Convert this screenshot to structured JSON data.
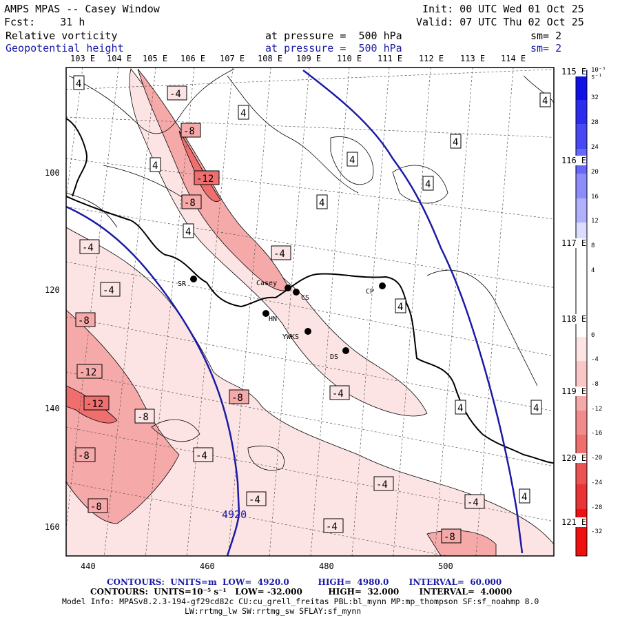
{
  "header": {
    "title": "AMPS MPAS -- Casey Window",
    "init": "Init: 00 UTC Wed 01 Oct 25",
    "forecast": "Fcst:    31 h",
    "valid": "Valid: 07 UTC Thu 02 Oct 25",
    "field1_name": "Relative vorticity",
    "field1_level": "at pressure =  500 hPa",
    "field1_sm": "sm= 2",
    "field2_name": "Geopotential height",
    "field2_level": "at pressure =  500 hPa",
    "field2_sm": "sm= 2"
  },
  "longitude_labels": [
    "103 E",
    "104 E",
    "105 E",
    "106 E",
    "107 E",
    "108 E",
    "109 E",
    "110 E",
    "111 E",
    "112 E",
    "113 E",
    "114 E"
  ],
  "right_lon_labels": [
    "115 E",
    "116 E",
    "117 E",
    "118 E",
    "119 E",
    "120 E",
    "121 E"
  ],
  "x_ticks": [
    "440",
    "460",
    "480",
    "500"
  ],
  "y_ticks": [
    "100",
    "120",
    "140",
    "160"
  ],
  "colorbar": {
    "units": "10⁻⁵ s⁻¹",
    "labels": [
      "32",
      "28",
      "24",
      "20",
      "16",
      "12",
      "8",
      "4",
      "0",
      "-4",
      "-8",
      "-12",
      "-16",
      "-20",
      "-24",
      "-28",
      "-32"
    ],
    "colors": {
      "neg_light": "#fde4e4",
      "neg_mid": "#f6a9a9",
      "neg_strong": "#ef6f6f",
      "pos_light": "#dcdcff",
      "pos_strong": "#3a3aff",
      "height_contour": "#1a1aa6"
    }
  },
  "stations": [
    {
      "name": "SR"
    },
    {
      "name": "Casey"
    },
    {
      "name": "CS"
    },
    {
      "name": "HN"
    },
    {
      "name": "YWKS"
    },
    {
      "name": "DS"
    },
    {
      "name": "CP"
    }
  ],
  "contour_labels": [
    "4",
    "-4",
    "-8",
    "-12",
    "4920"
  ],
  "footer": {
    "line1": "CONTOURS:  UNITS=m  LOW=  4920.0          HIGH=  4980.0       INTERVAL=  60.000",
    "line2": "CONTOURS:  UNITS=10⁻⁵ s⁻¹   LOW= -32.000         HIGH=  32.000       INTERVAL=  4.0000",
    "line3": "Model Info: MPASv8.2.3-194-gf29cd82c CU:cu_grell_freitas PBL:bl_mynn MP:mp_thompson SF:sf_noahmp 8.0",
    "line4": "LW:rrtmg_lw SW:rrtmg_sw SFLAY:sf_mynn"
  }
}
